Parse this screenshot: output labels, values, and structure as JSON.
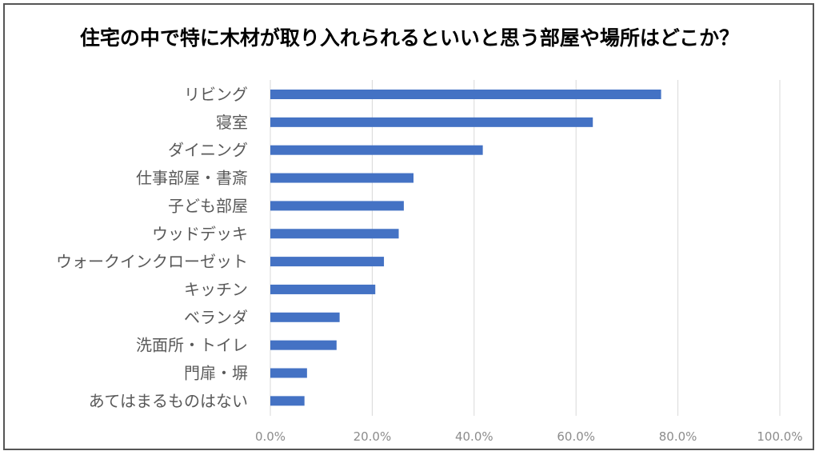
{
  "chart_data": {
    "type": "bar",
    "orientation": "horizontal",
    "title": "住宅の中で特に木材が取り入れられるといいと思う部屋や場所はどこか？",
    "categories": [
      "リビング",
      "寝室",
      "ダイニング",
      "仕事部屋・書斎",
      "子ども部屋",
      "ウッドデッキ",
      "ウォークインクローゼット",
      "キッチン",
      "ベランダ",
      "洗面所・トイレ",
      "門扉・塀",
      "あてはまるものはない"
    ],
    "values": [
      76.7,
      63.3,
      41.7,
      28.1,
      26.2,
      25.2,
      22.3,
      20.6,
      13.6,
      13.0,
      7.2,
      6.7
    ],
    "xlim": [
      0,
      100
    ],
    "xticks": [
      "0.0%",
      "20.0%",
      "40.0%",
      "60.0%",
      "80.0%",
      "100.0%"
    ],
    "grid": "vertical",
    "legend": "none",
    "bar_color": "#4472c4",
    "grid_color": "#d9d9d9"
  }
}
